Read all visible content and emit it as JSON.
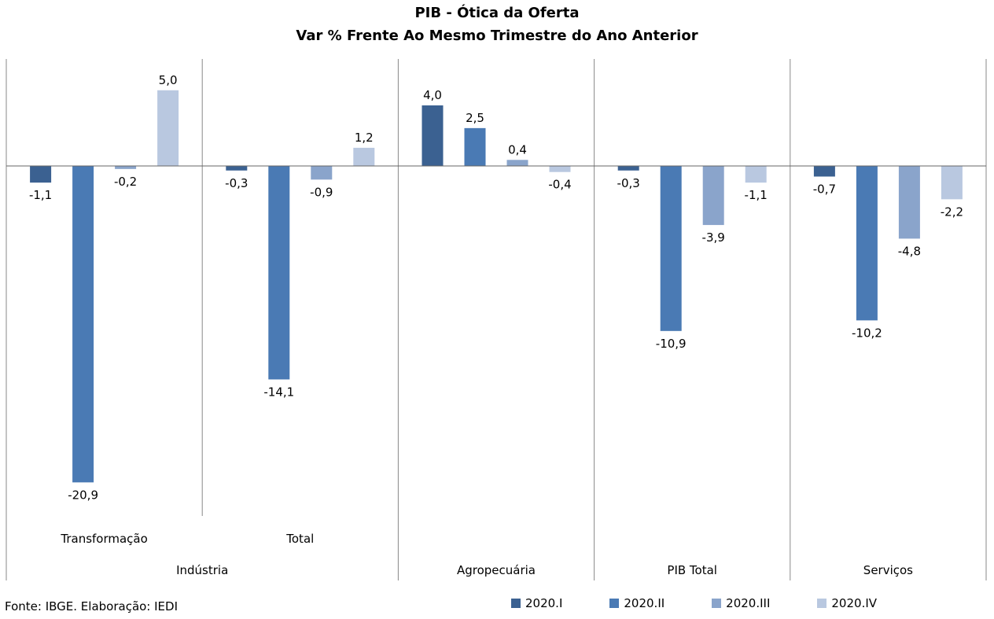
{
  "chart_data": {
    "type": "bar",
    "title": "PIB - Ótica da Oferta",
    "subtitle": "Var % Frente Ao Mesmo Trimestre do Ano Anterior",
    "categories": [
      "Transformação",
      "Total",
      "Agropecuária",
      "PIB Total",
      "Serviços"
    ],
    "groups": [
      {
        "label": "Indústria",
        "categories": [
          "Transformação",
          "Total"
        ]
      },
      {
        "label": "Agropecuária",
        "categories": [
          "Agropecuária"
        ]
      },
      {
        "label": "PIB Total",
        "categories": [
          "PIB Total"
        ]
      },
      {
        "label": "Serviços",
        "categories": [
          "Serviços"
        ]
      }
    ],
    "series": [
      {
        "name": "2020.I",
        "color": "#3b6191",
        "values": [
          -1.1,
          -0.3,
          4.0,
          -0.3,
          -0.7
        ],
        "labels": [
          "-1,1",
          "-0,3",
          "4,0",
          "-0,3",
          "-0,7"
        ]
      },
      {
        "name": "2020.II",
        "color": "#4a7ab4",
        "values": [
          -20.9,
          -14.1,
          2.5,
          -10.9,
          -10.2
        ],
        "labels": [
          "-20,9",
          "-14,1",
          "2,5",
          "-10,9",
          "-10,2"
        ]
      },
      {
        "name": "2020.III",
        "color": "#8aa4cb",
        "values": [
          -0.2,
          -0.9,
          0.4,
          -3.9,
          -4.8
        ],
        "labels": [
          "-0,2",
          "-0,9",
          "0,4",
          "-3,9",
          "-4,8"
        ]
      },
      {
        "name": "2020.IV",
        "color": "#b9c8e0",
        "values": [
          5.0,
          1.2,
          -0.4,
          -1.1,
          -2.2
        ],
        "labels": [
          "5,0",
          "1,2",
          "-0,4",
          "-1,1",
          "-2,2"
        ]
      }
    ],
    "ylim": [
      -23,
      7
    ],
    "grid": false,
    "legend_position": "bottom-right"
  },
  "source": "Fonte: IBGE. Elaboração: IEDI"
}
